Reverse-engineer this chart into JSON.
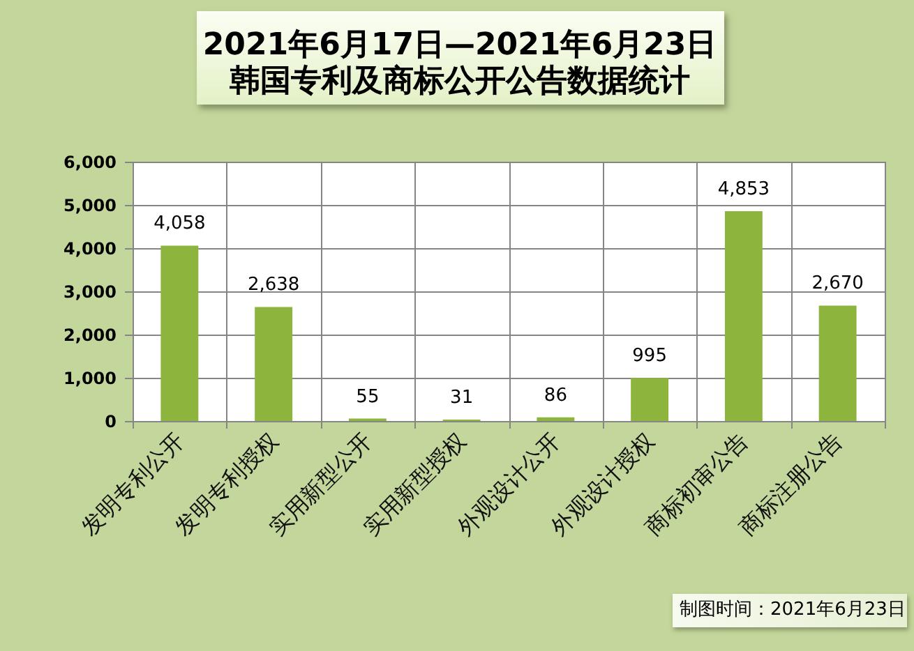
{
  "chart_data": {
    "type": "bar",
    "title": "2021年6月17日—2021年6月23日",
    "subtitle": "韩国专利及商标公开公告数据统计",
    "categories": [
      "发明专利公开",
      "发明专利授权",
      "实用新型公开",
      "实用新型授权",
      "外观设计公开",
      "外观设计授权",
      "商标初审公告",
      "商标注册公告"
    ],
    "values": [
      4058,
      2638,
      55,
      31,
      86,
      995,
      4853,
      2670
    ],
    "value_labels": [
      "4,058",
      "2,638",
      "55",
      "31",
      "86",
      "995",
      "4,853",
      "2,670"
    ],
    "color": "#8db43c",
    "ylim": [
      0,
      6000
    ],
    "yticks": [
      0,
      {
        "value": 1000,
        "label": "1,000"
      },
      {
        "value": 2000,
        "label": "2,000"
      },
      {
        "value": 3000,
        "label": "3,000"
      },
      {
        "value": 4000,
        "label": "4,000"
      },
      {
        "value": 5000,
        "label": "5,000"
      },
      {
        "value": 6000,
        "label": "6,000"
      }
    ],
    "grid": true,
    "annotations": [
      "制图时间：2021年6月23日"
    ]
  }
}
